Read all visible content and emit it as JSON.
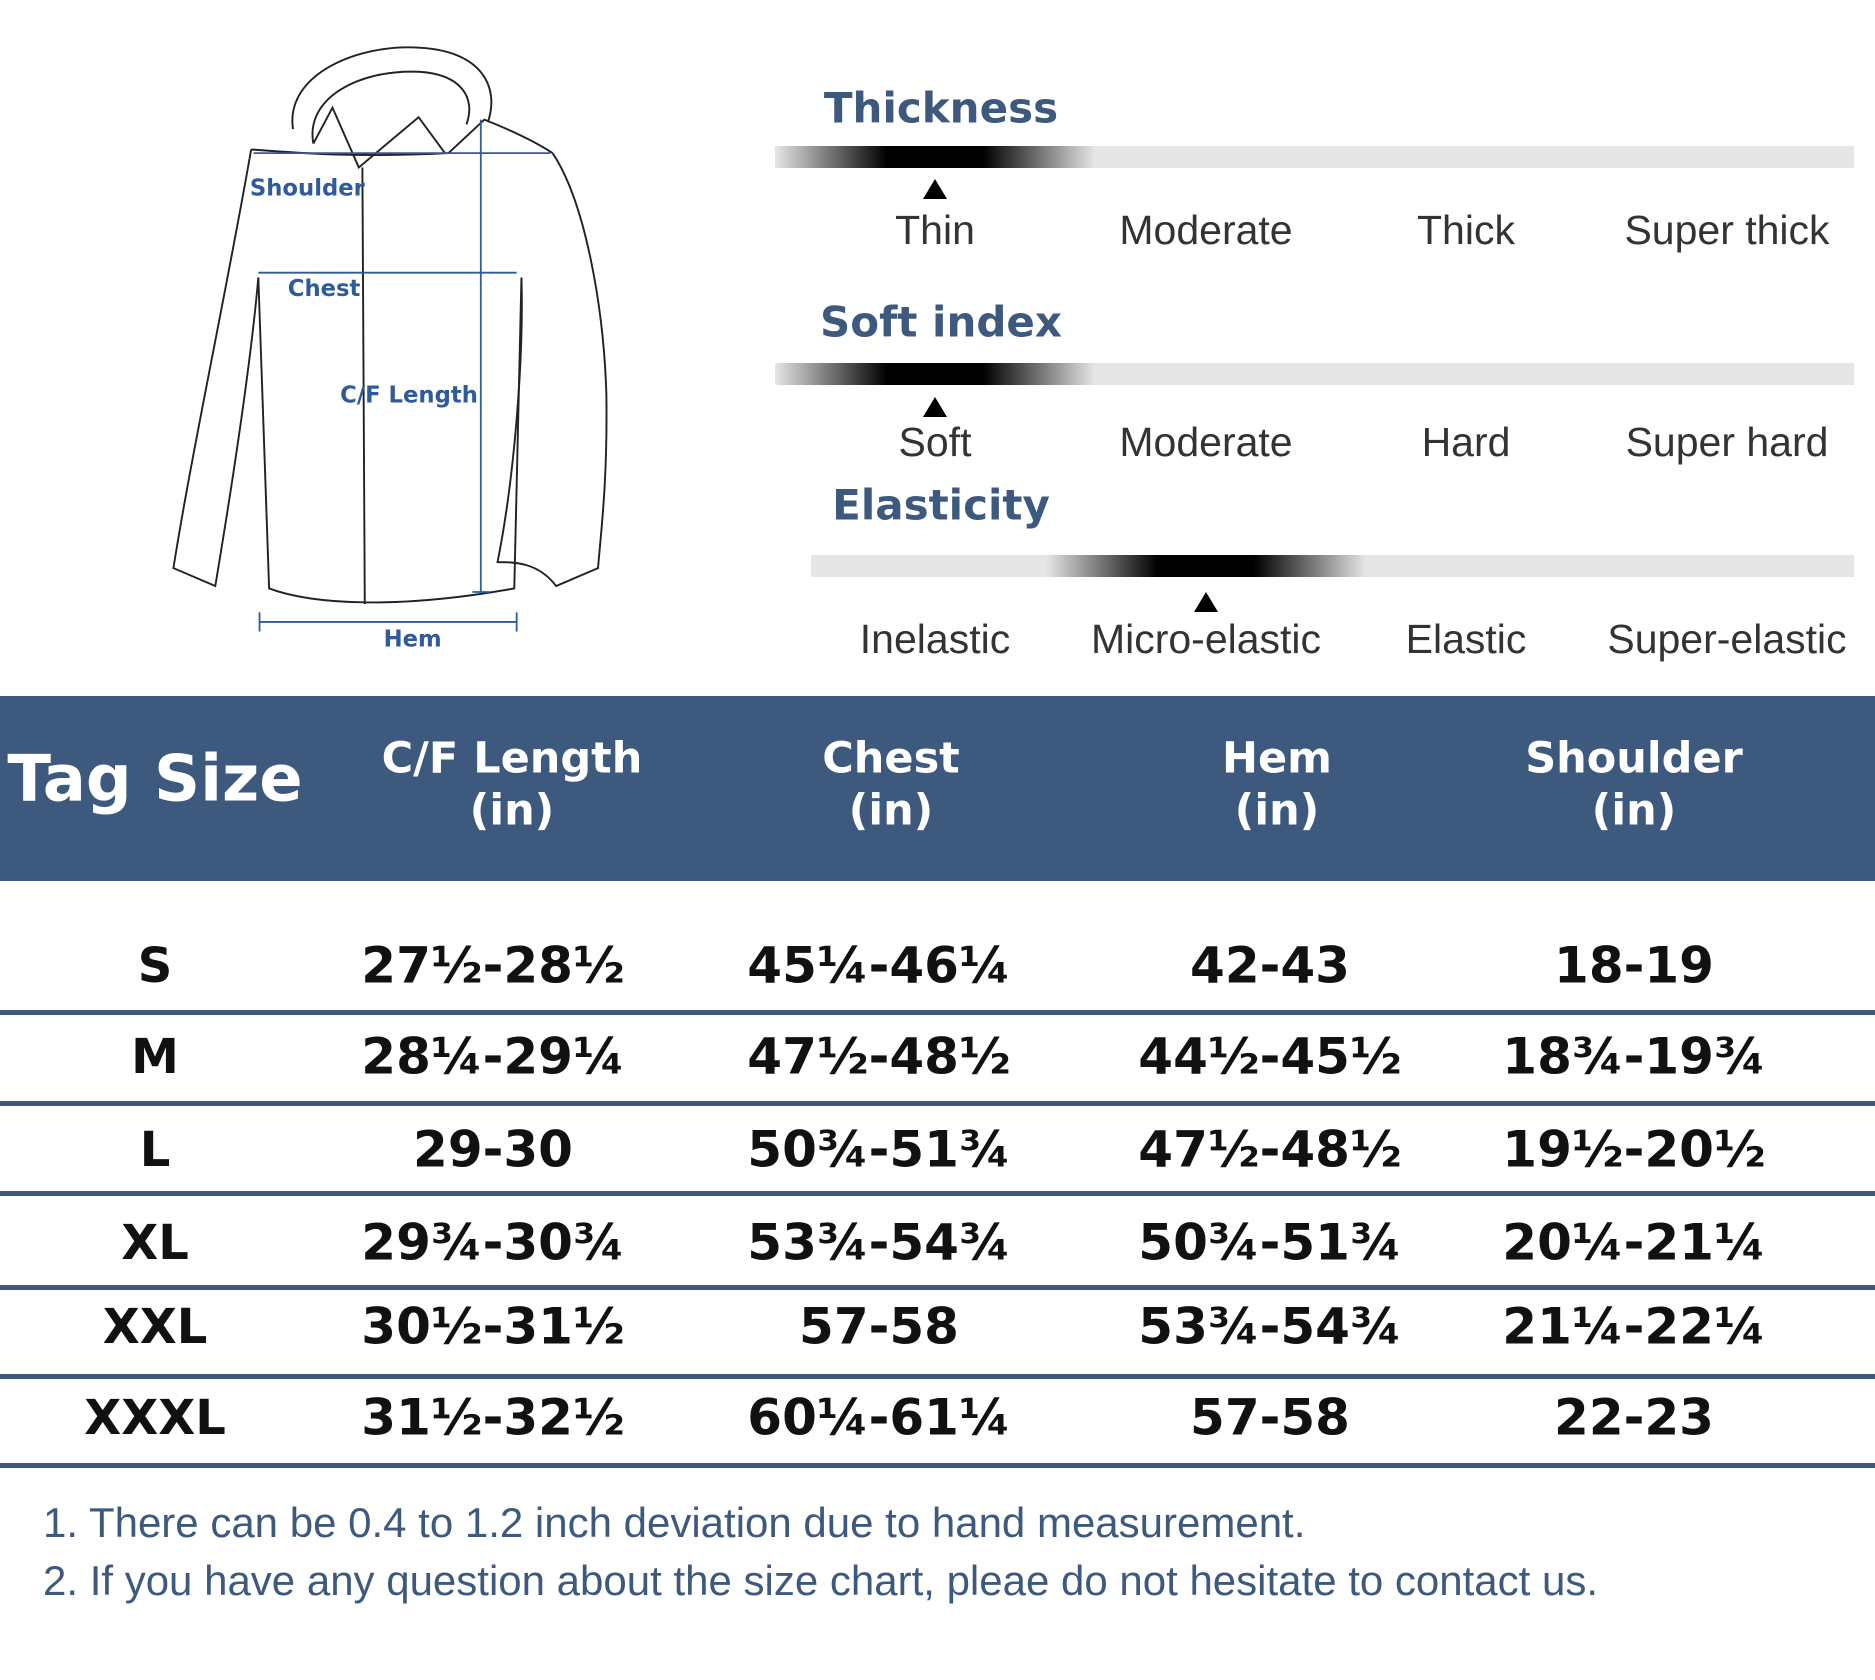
{
  "diagram": {
    "labels": [
      "Shoulder",
      "Chest",
      "C/F Length",
      "Hem"
    ]
  },
  "scales": [
    {
      "title": "Thickness",
      "options": [
        "Thin",
        "Moderate",
        "Thick",
        "Super thick"
      ],
      "selected": 0
    },
    {
      "title": "Soft index",
      "options": [
        "Soft",
        "Moderate",
        "Hard",
        "Super hard"
      ],
      "selected": 0
    },
    {
      "title": "Elasticity",
      "options": [
        "Inelastic",
        "Micro-elastic",
        "Elastic",
        "Super-elastic"
      ],
      "selected": 1
    }
  ],
  "table": {
    "header": [
      [
        "Tag Size"
      ],
      [
        "C/F Length",
        "(in)"
      ],
      [
        "Chest",
        "(in)"
      ],
      [
        "Hem",
        "(in)"
      ],
      [
        "Shoulder",
        "(in)"
      ]
    ],
    "rows": [
      [
        "S",
        "27½-28½",
        "45¼-46¼",
        "42-43",
        "18-19"
      ],
      [
        "M",
        "28¼-29¼",
        "47½-48½",
        "44½-45½",
        "18¾-19¾"
      ],
      [
        "L",
        "29-30",
        "50¾-51¾",
        "47½-48½",
        "19½-20½"
      ],
      [
        "XL",
        "29¾-30¾",
        "53¾-54¾",
        "50¾-51¾",
        "20¼-21¼"
      ],
      [
        "XXL",
        "30½-31½",
        "57-58",
        "53¾-54¾",
        "21¼-22¼"
      ],
      [
        "XXXL",
        "31½-32½",
        "60¼-61¼",
        "57-58",
        "22-23"
      ]
    ]
  },
  "notes": [
    "1. There can be 0.4 to 1.2 inch deviation due to hand measurement.",
    "2. If you have any question about the size chart, pleae do not hesitate to contact us."
  ]
}
